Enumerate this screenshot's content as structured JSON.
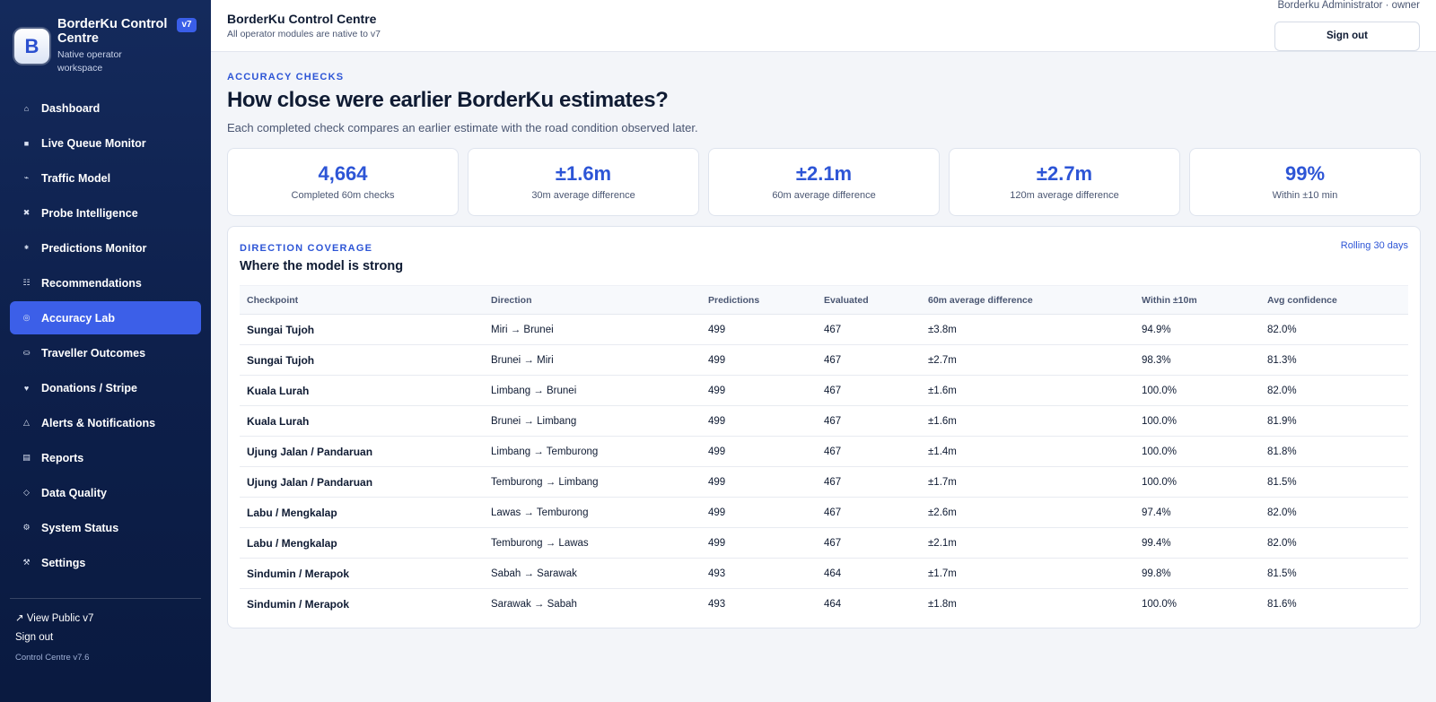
{
  "sidebar": {
    "brand": {
      "logo_letter": "B",
      "title": "BorderKu Control Centre",
      "subtitle": "Native operator workspace",
      "badge": "v7"
    },
    "nav": [
      {
        "label": "Dashboard",
        "icon": "⌂",
        "icon_name": "home-icon",
        "active": false
      },
      {
        "label": "Live Queue Monitor",
        "icon": "■",
        "icon_name": "monitor-icon",
        "active": false
      },
      {
        "label": "Traffic Model",
        "icon": "⌁",
        "icon_name": "model-icon",
        "active": false
      },
      {
        "label": "Probe Intelligence",
        "icon": "✖",
        "icon_name": "probe-icon",
        "active": false
      },
      {
        "label": "Predictions Monitor",
        "icon": "⁕",
        "icon_name": "predictions-icon",
        "active": false
      },
      {
        "label": "Recommendations",
        "icon": "☷",
        "icon_name": "list-icon",
        "active": false
      },
      {
        "label": "Accuracy Lab",
        "icon": "◎",
        "icon_name": "target-icon",
        "active": true
      },
      {
        "label": "Traveller Outcomes",
        "icon": "⛀",
        "icon_name": "outcomes-icon",
        "active": false
      },
      {
        "label": "Donations / Stripe",
        "icon": "♥",
        "icon_name": "heart-icon",
        "active": false
      },
      {
        "label": "Alerts & Notifications",
        "icon": "△",
        "icon_name": "alert-icon",
        "active": false
      },
      {
        "label": "Reports",
        "icon": "▤",
        "icon_name": "report-icon",
        "active": false
      },
      {
        "label": "Data Quality",
        "icon": "◇",
        "icon_name": "diamond-icon",
        "active": false
      },
      {
        "label": "System Status",
        "icon": "⚙",
        "icon_name": "status-icon",
        "active": false
      },
      {
        "label": "Settings",
        "icon": "⚒",
        "icon_name": "settings-icon",
        "active": false
      }
    ],
    "footer": {
      "public_link": "↗ View Public v7",
      "signout": "Sign out",
      "version": "Control Centre v7.6"
    }
  },
  "topbar": {
    "title": "BorderKu Control Centre",
    "subtitle": "All operator modules are native to v7",
    "user": "Borderku Administrator · owner",
    "signout_label": "Sign out"
  },
  "page": {
    "eyebrow": "ACCURACY CHECKS",
    "title": "How close were earlier BorderKu estimates?",
    "lead": "Each completed check compares an earlier estimate with the road condition observed later."
  },
  "stats": [
    {
      "value": "4,664",
      "label": "Completed 60m checks"
    },
    {
      "value": "±1.6m",
      "label": "30m average difference"
    },
    {
      "value": "±2.1m",
      "label": "60m average difference"
    },
    {
      "value": "±2.7m",
      "label": "120m average difference"
    },
    {
      "value": "99%",
      "label": "Within ±10 min"
    }
  ],
  "coverage": {
    "eyebrow": "DIRECTION COVERAGE",
    "title": "Where the model is strong",
    "range": "Rolling 30 days",
    "columns": [
      "Checkpoint",
      "Direction",
      "Predictions",
      "Evaluated",
      "60m average difference",
      "Within ±10m",
      "Avg confidence"
    ],
    "rows": [
      {
        "checkpoint": "Sungai Tujoh",
        "direction": "Miri → Brunei",
        "predictions": "499",
        "evaluated": "467",
        "diff": "±3.8m",
        "within": "94.9%",
        "confidence": "82.0%"
      },
      {
        "checkpoint": "Sungai Tujoh",
        "direction": "Brunei → Miri",
        "predictions": "499",
        "evaluated": "467",
        "diff": "±2.7m",
        "within": "98.3%",
        "confidence": "81.3%"
      },
      {
        "checkpoint": "Kuala Lurah",
        "direction": "Limbang → Brunei",
        "predictions": "499",
        "evaluated": "467",
        "diff": "±1.6m",
        "within": "100.0%",
        "confidence": "82.0%"
      },
      {
        "checkpoint": "Kuala Lurah",
        "direction": "Brunei → Limbang",
        "predictions": "499",
        "evaluated": "467",
        "diff": "±1.6m",
        "within": "100.0%",
        "confidence": "81.9%"
      },
      {
        "checkpoint": "Ujung Jalan / Pandaruan",
        "direction": "Limbang → Temburong",
        "predictions": "499",
        "evaluated": "467",
        "diff": "±1.4m",
        "within": "100.0%",
        "confidence": "81.8%"
      },
      {
        "checkpoint": "Ujung Jalan / Pandaruan",
        "direction": "Temburong → Limbang",
        "predictions": "499",
        "evaluated": "467",
        "diff": "±1.7m",
        "within": "100.0%",
        "confidence": "81.5%"
      },
      {
        "checkpoint": "Labu / Mengkalap",
        "direction": "Lawas → Temburong",
        "predictions": "499",
        "evaluated": "467",
        "diff": "±2.6m",
        "within": "97.4%",
        "confidence": "82.0%"
      },
      {
        "checkpoint": "Labu / Mengkalap",
        "direction": "Temburong → Lawas",
        "predictions": "499",
        "evaluated": "467",
        "diff": "±2.1m",
        "within": "99.4%",
        "confidence": "82.0%"
      },
      {
        "checkpoint": "Sindumin / Merapok",
        "direction": "Sabah → Sarawak",
        "predictions": "493",
        "evaluated": "464",
        "diff": "±1.7m",
        "within": "99.8%",
        "confidence": "81.5%"
      },
      {
        "checkpoint": "Sindumin / Merapok",
        "direction": "Sarawak → Sabah",
        "predictions": "493",
        "evaluated": "464",
        "diff": "±1.8m",
        "within": "100.0%",
        "confidence": "81.6%"
      }
    ]
  }
}
